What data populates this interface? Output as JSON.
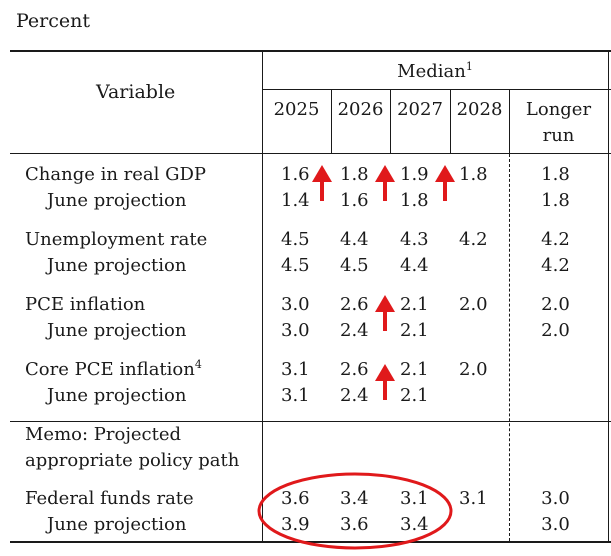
{
  "unit_label": "Percent",
  "header": {
    "variable": "Variable",
    "group_label": "Median",
    "group_note": "1",
    "years": [
      "2025",
      "2026",
      "2027",
      "2028"
    ],
    "longer_run_line1": "Longer",
    "longer_run_line2": "run"
  },
  "rows": {
    "gdp": {
      "label": "Change in real GDP",
      "values": [
        "1.6",
        "1.8",
        "1.9",
        "1.8"
      ],
      "lr": "1.8"
    },
    "gdp_june": {
      "label": "June projection",
      "values": [
        "1.4",
        "1.6",
        "1.8"
      ],
      "lr": "1.8"
    },
    "unemp": {
      "label": "Unemployment rate",
      "values": [
        "4.5",
        "4.4",
        "4.3",
        "4.2"
      ],
      "lr": "4.2"
    },
    "unemp_june": {
      "label": "June projection",
      "values": [
        "4.5",
        "4.5",
        "4.4"
      ],
      "lr": "4.2"
    },
    "pce": {
      "label": "PCE inflation",
      "values": [
        "3.0",
        "2.6",
        "2.1",
        "2.0"
      ],
      "lr": "2.0"
    },
    "pce_june": {
      "label": "June projection",
      "values": [
        "3.0",
        "2.4",
        "2.1"
      ],
      "lr": "2.0"
    },
    "core": {
      "label": "Core PCE inflation",
      "note": "4",
      "values": [
        "3.1",
        "2.6",
        "2.1",
        "2.0"
      ]
    },
    "core_june": {
      "label": "June projection",
      "values": [
        "3.1",
        "2.4",
        "2.1"
      ]
    },
    "memo1": {
      "label": "Memo: Projected"
    },
    "memo2": {
      "label": "appropriate policy path"
    },
    "ffr": {
      "label": "Federal funds rate",
      "values": [
        "3.6",
        "3.4",
        "3.1",
        "3.1"
      ],
      "lr": "3.0"
    },
    "ffr_june": {
      "label": "June projection",
      "values": [
        "3.9",
        "3.6",
        "3.4"
      ],
      "lr": "3.0"
    }
  },
  "colors": {
    "annotation_red": "#e0191b",
    "rule": "#1a1a1a"
  },
  "icons": {
    "up_arrow": "up-arrow-icon",
    "highlight": "highlight-ellipse"
  }
}
